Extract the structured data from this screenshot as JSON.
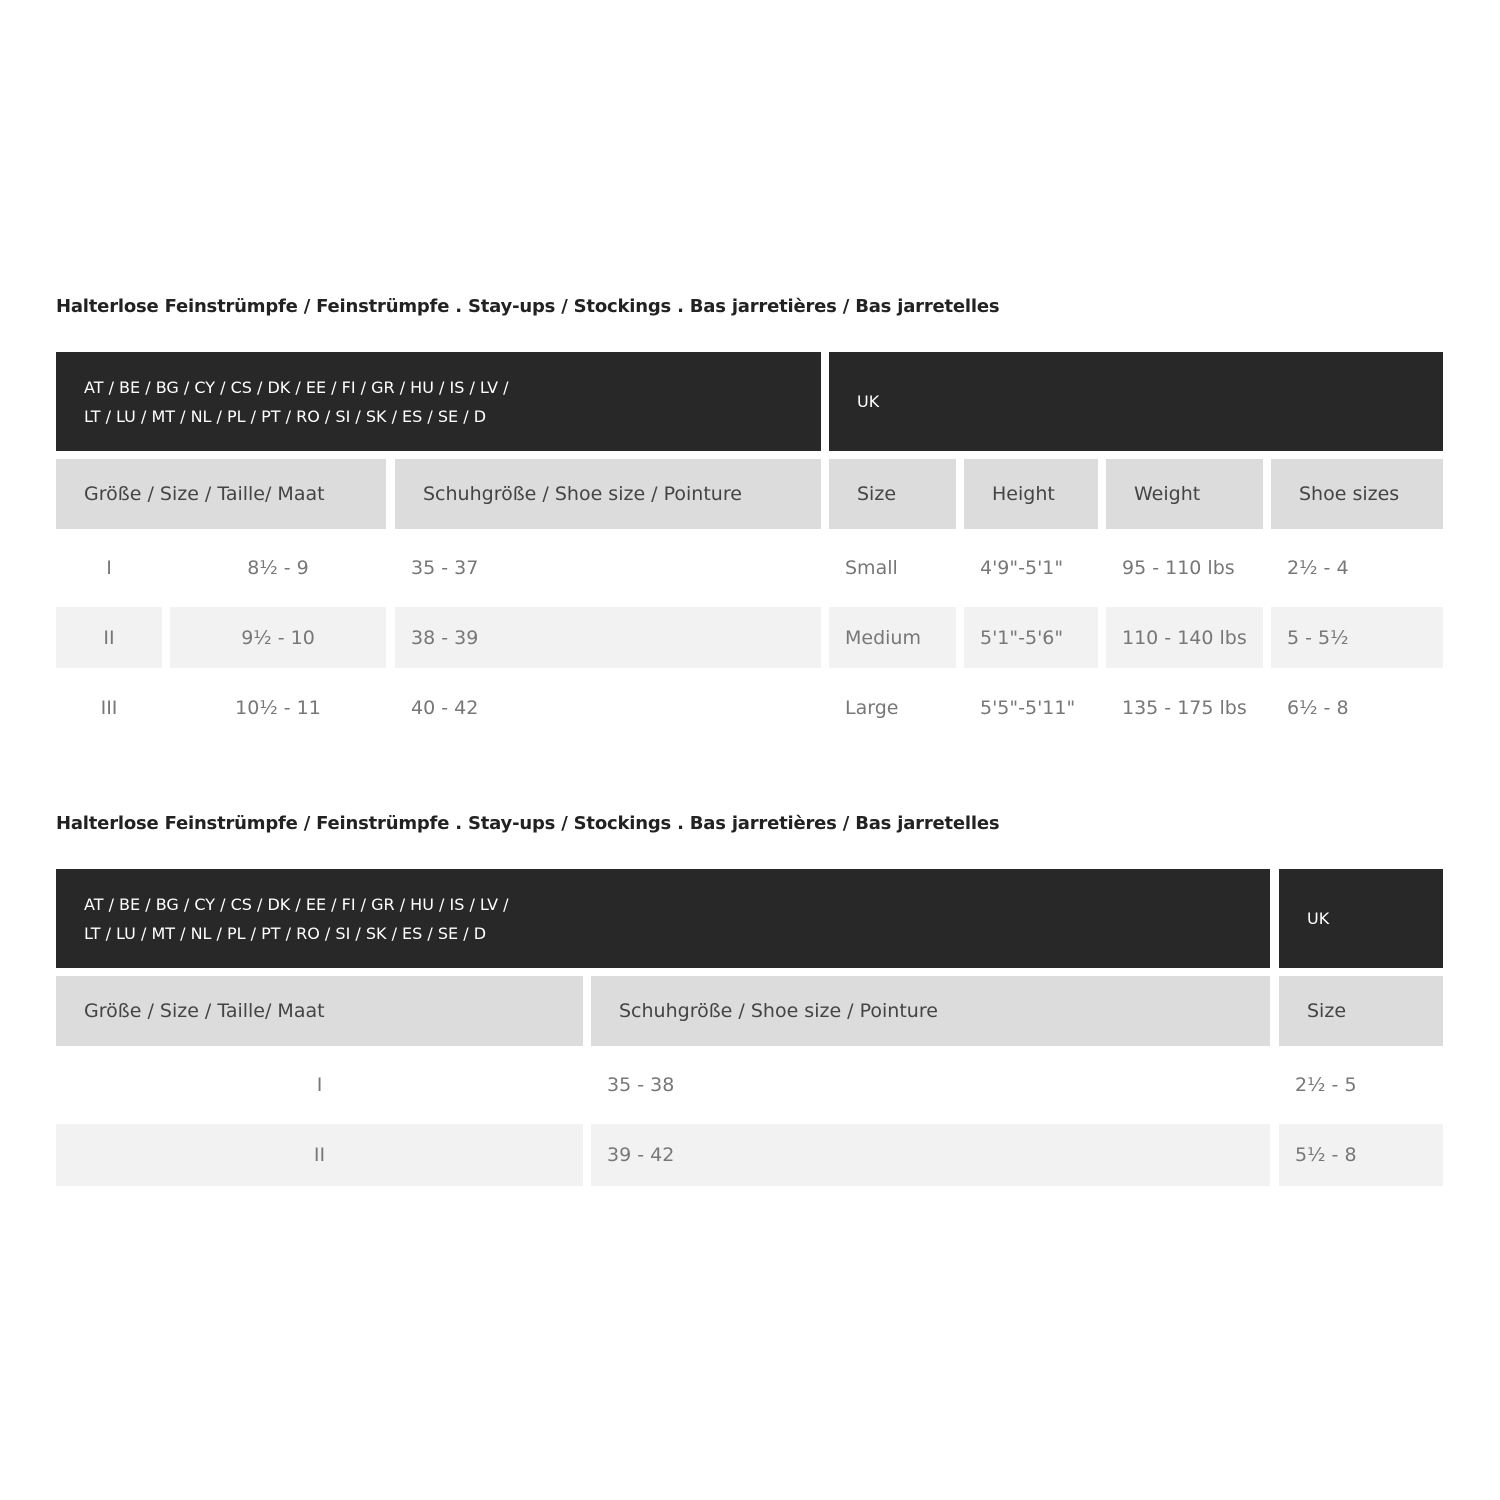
{
  "title": "Halterlose Feinstrümpfe / Feinstrümpfe . Stay-ups / Stockings . Bas jarretières / Bas jarretelles",
  "regions_line1": "AT / BE / BG / CY / CS / DK / EE / FI / GR / HU / IS / LV /",
  "regions_line2": "LT / LU / MT / NL / PL / PT / RO / SI / SK / ES / SE / D",
  "uk": "UK",
  "table1": {
    "headers": [
      "Größe / Size / Taille/ Maat",
      "Schuhgröße / Shoe size / Pointure",
      "Size",
      "Height",
      "Weight",
      "Shoe sizes"
    ],
    "rows": [
      [
        "I",
        "8½ - 9",
        "35 - 37",
        "Small",
        "4'9\"-5'1\"",
        "95 - 110 lbs",
        "2½ - 4"
      ],
      [
        "II",
        "9½ - 10",
        "38 - 39",
        "Medium",
        "5'1\"-5'6\"",
        "110 - 140 lbs",
        "5 - 5½"
      ],
      [
        "III",
        "10½ - 11",
        "40 - 42",
        "Large",
        "5'5\"-5'11\"",
        "135 - 175 lbs",
        "6½ - 8"
      ]
    ]
  },
  "table2": {
    "headers": [
      "Größe / Size / Taille/ Maat",
      "Schuhgröße / Shoe size / Pointure",
      "Size"
    ],
    "rows": [
      [
        "I",
        "35 - 38",
        "2½ - 5"
      ],
      [
        "II",
        "39 - 42",
        "5½ - 8"
      ]
    ]
  }
}
